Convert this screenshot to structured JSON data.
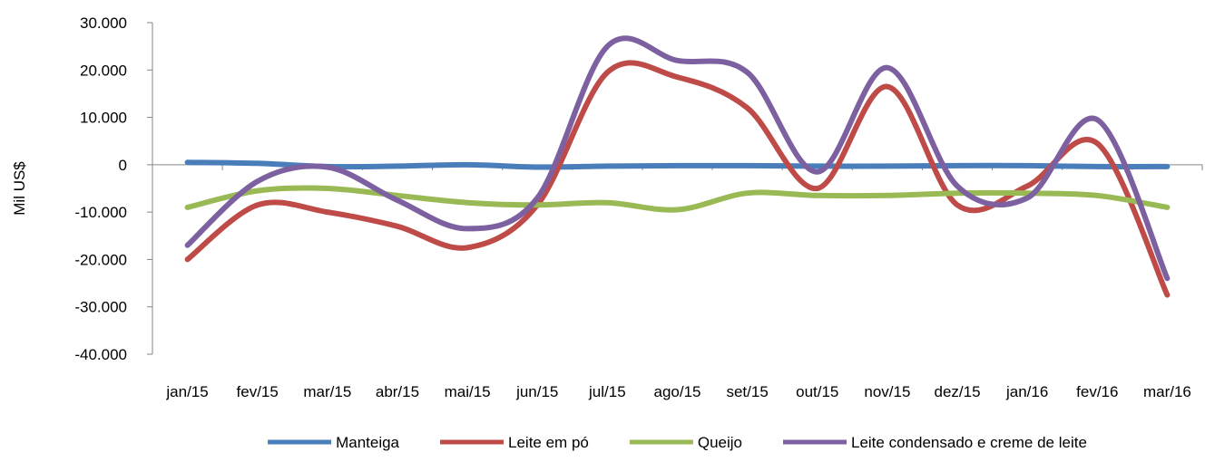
{
  "chart_data": {
    "type": "line",
    "title": "",
    "xlabel": "",
    "ylabel": "Mil US$",
    "categories": [
      "jan/15",
      "fev/15",
      "mar/15",
      "abr/15",
      "mai/15",
      "jun/15",
      "jul/15",
      "ago/15",
      "set/15",
      "out/15",
      "nov/15",
      "dez/15",
      "jan/16",
      "fev/16",
      "mar/16"
    ],
    "ylim": [
      -40000,
      30000
    ],
    "yticks": [
      -40000,
      -30000,
      -20000,
      -10000,
      0,
      10000,
      20000,
      30000
    ],
    "ytick_labels": [
      "-40.000",
      "-30.000",
      "-20.000",
      "-10.000",
      "0",
      "10.000",
      "20.000",
      "30.000"
    ],
    "grid": false,
    "legend_position": "bottom",
    "series": [
      {
        "name": "Manteiga",
        "color": "#4A7EBB",
        "values": [
          500,
          300,
          -400,
          -300,
          0,
          -500,
          -300,
          -200,
          -200,
          -300,
          -300,
          -200,
          -200,
          -400,
          -400
        ]
      },
      {
        "name": "Leite em pó",
        "color": "#BE4B48",
        "values": [
          -20000,
          -8500,
          -10000,
          -13000,
          -17500,
          -8500,
          19500,
          18500,
          12000,
          -5000,
          16500,
          -8500,
          -4500,
          4500,
          -27500
        ]
      },
      {
        "name": "Queijo",
        "color": "#98B954",
        "values": [
          -9000,
          -5500,
          -5000,
          -6500,
          -8000,
          -8500,
          -8000,
          -9500,
          -6000,
          -6500,
          -6500,
          -6000,
          -6000,
          -6500,
          -9000
        ]
      },
      {
        "name": "Leite condensado e creme de leite",
        "color": "#7D60A0",
        "values": [
          -17000,
          -3500,
          -500,
          -7500,
          -13500,
          -7000,
          25000,
          22000,
          19500,
          -1500,
          20500,
          -4500,
          -7000,
          9500,
          -24000
        ]
      }
    ]
  }
}
